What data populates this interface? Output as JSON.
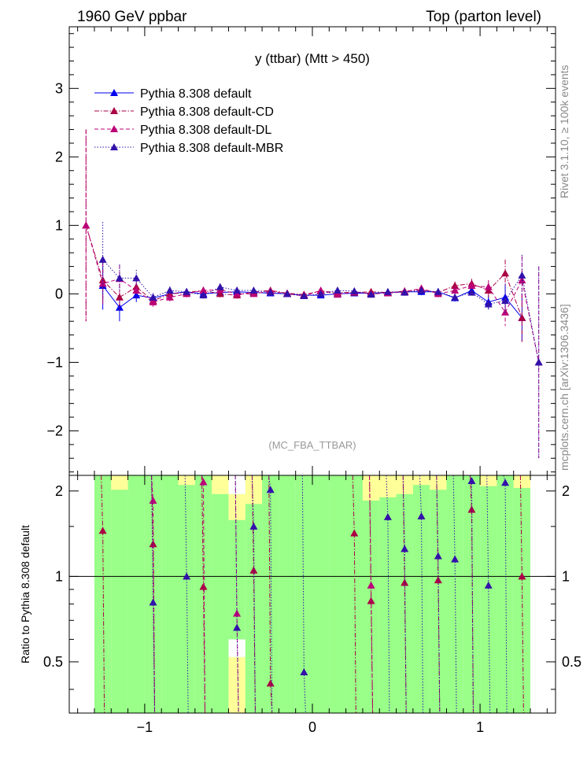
{
  "header": {
    "left": "1960 GeV ppbar",
    "right": "Top (parton level)"
  },
  "side_texts": {
    "rivet": "Rivet 3.1.10, ≥ 100k events",
    "mcplots": "mcplots.cern.ch [arXiv:1306.3436]"
  },
  "colors": {
    "default": "#0000ee",
    "cd": "#aa0044",
    "dl": "#bb0077",
    "mbr": "#3311aa",
    "band_inner": "#99ff88",
    "band_outer": "#ffff99"
  },
  "chart_data": [
    {
      "type": "line",
      "title": "y (ttbar) (Mtt > 450)",
      "watermark": "(MC_FBA_TTBAR)",
      "xlim": [
        -1.45,
        1.45
      ],
      "ylim": [
        -2.65,
        3.9
      ],
      "x_ticks": [
        -1,
        0,
        1
      ],
      "x_tick_labels": [
        "−1",
        "0",
        "1"
      ],
      "y_ticks": [
        -2,
        -1,
        0,
        1,
        2,
        3
      ],
      "y_tick_labels": [
        "−2",
        "−1",
        "0",
        "1",
        "2",
        "3"
      ],
      "legend_position": "top-left",
      "series": [
        {
          "name": "Pythia 8.308 default",
          "style": "solid",
          "x": [
            -1.25,
            -1.15,
            -1.05,
            -0.95,
            -0.85,
            -0.75,
            -0.65,
            -0.55,
            -0.45,
            -0.35,
            -0.25,
            -0.15,
            -0.05,
            0.05,
            0.15,
            0.25,
            0.35,
            0.45,
            0.55,
            0.65,
            0.75,
            0.85,
            0.95,
            1.05,
            1.15,
            1.25
          ],
          "y": [
            0.12,
            -0.2,
            -0.02,
            -0.06,
            0.0,
            0.03,
            0.0,
            0.02,
            0.03,
            0.02,
            0.01,
            0.0,
            -0.02,
            -0.02,
            0.0,
            0.01,
            0.01,
            0.02,
            0.03,
            0.03,
            0.03,
            -0.06,
            0.05,
            -0.12,
            -0.05,
            -0.35
          ],
          "err": [
            0.35,
            0.2,
            0.1,
            0.06,
            0.06,
            0.05,
            0.05,
            0.05,
            0.05,
            0.04,
            0.04,
            0.04,
            0.04,
            0.04,
            0.04,
            0.04,
            0.04,
            0.04,
            0.05,
            0.05,
            0.05,
            0.05,
            0.06,
            0.1,
            0.2,
            0.35
          ]
        },
        {
          "name": "Pythia 8.308 default-CD",
          "style": "dashdot",
          "x": [
            -1.35,
            -1.25,
            -1.15,
            -1.05,
            -0.95,
            -0.85,
            -0.75,
            -0.65,
            -0.55,
            -0.45,
            -0.35,
            -0.25,
            -0.15,
            -0.05,
            0.05,
            0.15,
            0.25,
            0.35,
            0.45,
            0.55,
            0.65,
            0.75,
            0.85,
            0.95,
            1.05,
            1.15,
            1.25
          ],
          "y": [
            1.0,
            0.2,
            -0.05,
            0.1,
            -0.1,
            0.0,
            0.02,
            0.05,
            0.0,
            -0.02,
            0.03,
            0.05,
            0.01,
            -0.01,
            0.04,
            0.02,
            0.02,
            0.03,
            0.02,
            0.04,
            0.06,
            0.02,
            0.12,
            0.15,
            0.05,
            0.3,
            -0.35
          ],
          "err": [
            1.4,
            0.3,
            0.2,
            0.1,
            0.07,
            0.06,
            0.05,
            0.05,
            0.05,
            0.05,
            0.04,
            0.04,
            0.04,
            0.04,
            0.04,
            0.04,
            0.04,
            0.04,
            0.04,
            0.05,
            0.05,
            0.05,
            0.06,
            0.07,
            0.1,
            0.2,
            0.35
          ]
        },
        {
          "name": "Pythia 8.308 default-DL",
          "style": "dashed",
          "x": [
            -1.35,
            -1.25,
            -1.15,
            -1.05,
            -0.95,
            -0.85,
            -0.75,
            -0.65,
            -0.55,
            -0.45,
            -0.35,
            -0.25,
            -0.15,
            -0.05,
            0.05,
            0.15,
            0.25,
            0.35,
            0.45,
            0.55,
            0.65,
            0.75,
            0.85,
            0.95,
            1.05,
            1.15,
            1.25,
            1.35
          ],
          "y": [
            1.0,
            0.15,
            0.22,
            0.05,
            -0.12,
            -0.05,
            0.0,
            0.05,
            0.06,
            0.0,
            0.0,
            0.04,
            0.0,
            -0.03,
            0.05,
            -0.01,
            0.03,
            0.0,
            0.01,
            0.03,
            0.08,
            0.0,
            0.05,
            0.12,
            0.1,
            -0.27,
            0.2,
            -1.0
          ],
          "err": [
            1.4,
            0.3,
            0.2,
            0.1,
            0.07,
            0.06,
            0.05,
            0.05,
            0.05,
            0.05,
            0.04,
            0.04,
            0.04,
            0.04,
            0.04,
            0.04,
            0.04,
            0.04,
            0.04,
            0.05,
            0.05,
            0.05,
            0.06,
            0.07,
            0.1,
            0.2,
            0.35,
            1.4
          ]
        },
        {
          "name": "Pythia 8.308 default-MBR",
          "style": "dotted",
          "x": [
            -1.25,
            -1.15,
            -1.05,
            -0.95,
            -0.85,
            -0.75,
            -0.65,
            -0.55,
            -0.45,
            -0.35,
            -0.25,
            -0.15,
            -0.05,
            0.05,
            0.15,
            0.25,
            0.35,
            0.45,
            0.55,
            0.65,
            0.75,
            0.85,
            0.95,
            1.05,
            1.15,
            1.25,
            1.35
          ],
          "y": [
            0.5,
            0.23,
            0.23,
            -0.05,
            0.05,
            0.03,
            -0.02,
            0.1,
            0.05,
            0.05,
            0.02,
            0.0,
            -0.03,
            0.0,
            0.05,
            0.04,
            -0.01,
            0.03,
            0.02,
            0.05,
            0.03,
            -0.05,
            0.02,
            -0.15,
            -0.1,
            0.27,
            -1.0
          ],
          "err": [
            0.55,
            0.2,
            0.12,
            0.06,
            0.06,
            0.05,
            0.05,
            0.05,
            0.05,
            0.04,
            0.04,
            0.04,
            0.04,
            0.04,
            0.04,
            0.04,
            0.04,
            0.04,
            0.05,
            0.05,
            0.05,
            0.05,
            0.06,
            0.1,
            0.2,
            0.3,
            1.4
          ]
        }
      ]
    },
    {
      "type": "line",
      "ylabel": "Ratio to Pythia 8.308 default",
      "xlim": [
        -1.45,
        1.45
      ],
      "ylim": [
        0.33,
        2.27
      ],
      "x_ticks": [
        -1,
        0,
        1
      ],
      "x_tick_labels": [
        "−1",
        "0",
        "1"
      ],
      "y_ticks": [
        0.5,
        1,
        2
      ],
      "y_tick_labels": [
        "0.5",
        "1",
        "2"
      ],
      "reference_line": 1,
      "band_x_edges": [
        -1.3,
        -1.2,
        -1.1,
        -1.0,
        -0.9,
        -0.8,
        -0.7,
        -0.6,
        -0.5,
        -0.4,
        -0.3,
        -0.2,
        -0.1,
        0.0,
        0.1,
        0.2,
        0.3,
        0.4,
        0.5,
        0.6,
        0.7,
        0.8,
        0.9,
        1.0,
        1.1,
        1.2,
        1.3
      ],
      "band_inner_top": [
        2.3,
        2.3,
        2.0,
        2.3,
        2.3,
        2.3,
        2.3,
        2.3,
        1.85,
        2.3,
        2.3,
        2.3,
        2.3,
        2.3,
        2.3,
        2.3,
        2.3,
        2.3,
        2.3,
        2.3,
        2.3,
        2.3,
        2.3,
        2.3,
        2.3,
        2.3
      ],
      "band_outer_top": [
        2.3,
        2.3,
        2.3,
        2.3,
        2.3,
        2.3,
        2.3,
        2.3,
        2.3,
        2.3,
        2.3,
        2.3,
        2.3,
        2.3,
        2.3,
        2.3,
        2.3,
        2.3,
        2.3,
        2.3,
        2.3,
        2.3,
        2.3,
        2.3,
        2.3,
        2.3
      ],
      "band_yellow": [
        {
          "x0": -1.2,
          "x1": -1.1,
          "y0": 2.02,
          "y1": 2.3
        },
        {
          "x0": -0.8,
          "x1": -0.7,
          "y0": 2.1,
          "y1": 2.3
        },
        {
          "x0": -0.6,
          "x1": -0.5,
          "y0": 1.95,
          "y1": 2.3
        },
        {
          "x0": -0.5,
          "x1": -0.4,
          "y0": 1.58,
          "y1": 1.95
        },
        {
          "x0": -0.4,
          "x1": -0.3,
          "y0": 1.8,
          "y1": 2.3
        },
        {
          "x0": 0.3,
          "x1": 0.4,
          "y0": 1.85,
          "y1": 2.3
        },
        {
          "x0": 0.4,
          "x1": 0.5,
          "y0": 1.9,
          "y1": 2.3
        },
        {
          "x0": 0.5,
          "x1": 0.6,
          "y0": 1.95,
          "y1": 2.3
        },
        {
          "x0": 0.6,
          "x1": 0.7,
          "y0": 2.1,
          "y1": 2.3
        },
        {
          "x0": 0.7,
          "x1": 0.8,
          "y0": 2.02,
          "y1": 2.3
        },
        {
          "x0": 1.0,
          "x1": 1.1,
          "y0": 2.08,
          "y1": 2.3
        },
        {
          "x0": 1.2,
          "x1": 1.3,
          "y0": 2.05,
          "y1": 2.3
        },
        {
          "x0": -0.5,
          "x1": -0.4,
          "y0": 0.3,
          "y1": 0.52
        }
      ],
      "band_white_gaps": [
        {
          "x0": -0.5,
          "x1": -0.4,
          "y0": 1.95,
          "y1": 2.3
        },
        {
          "x0": -0.5,
          "x1": -0.4,
          "y0": 0.52,
          "y1": 0.6
        }
      ],
      "series": [
        {
          "name": "Pythia 8.308 default-CD",
          "style": "dashdot",
          "x": [
            -1.25,
            -0.95,
            -0.65,
            -0.35,
            -0.25,
            0.25,
            0.35,
            0.55,
            0.75,
            0.95,
            1.25
          ],
          "y": [
            1.45,
            1.3,
            0.92,
            1.05,
            0.42,
            1.42,
            0.82,
            0.95,
            0.97,
            1.72,
            1.0
          ]
        },
        {
          "name": "Pythia 8.308 default-DL",
          "style": "dashed",
          "x": [
            -0.95,
            -0.65,
            -0.45,
            0.35
          ],
          "y": [
            1.85,
            2.15,
            0.74,
            0.93
          ]
        },
        {
          "name": "Pythia 8.308 default-MBR",
          "style": "dotted",
          "x": [
            -0.95,
            -0.75,
            -0.45,
            -0.35,
            -0.25,
            -0.05,
            0.45,
            0.55,
            0.65,
            0.75,
            0.85,
            0.95,
            1.05,
            1.15
          ],
          "y": [
            0.81,
            1.0,
            0.66,
            1.5,
            2.02,
            0.46,
            1.62,
            1.25,
            1.63,
            1.18,
            1.15,
            2.17,
            0.93,
            2.14
          ]
        }
      ]
    }
  ]
}
